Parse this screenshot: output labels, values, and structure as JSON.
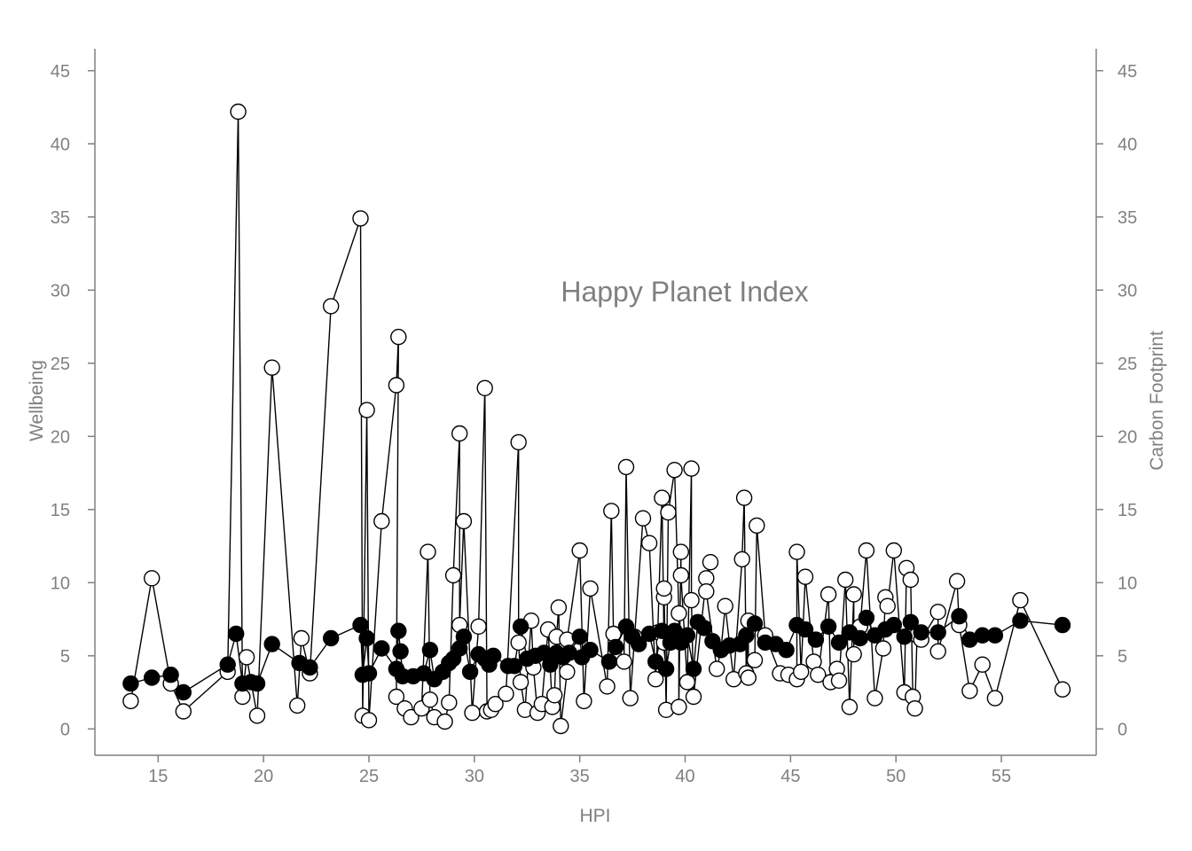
{
  "chart_data": {
    "type": "line",
    "title": "Happy Planet Index",
    "xlabel": "HPI",
    "ylabel": "Wellbeing",
    "y2label": "Carbon Footprint",
    "xlim": [
      12,
      59.5
    ],
    "ylim": [
      -1.8,
      46.5
    ],
    "xticks": [
      15,
      20,
      25,
      30,
      35,
      40,
      45,
      50,
      55
    ],
    "yticks": [
      0,
      5,
      10,
      15,
      20,
      25,
      30,
      35,
      40,
      45
    ],
    "y2ticks": [
      0,
      5,
      10,
      15,
      20,
      25,
      30,
      35,
      40,
      45
    ],
    "grid": false,
    "series": [
      {
        "name": "",
        "axis": "left",
        "marker": "filled",
        "color": "#000000",
        "points": [
          [
            13.7,
            3.1
          ],
          [
            14.7,
            3.5
          ],
          [
            15.6,
            3.7
          ],
          [
            16.2,
            2.5
          ],
          [
            18.3,
            4.4
          ],
          [
            18.7,
            6.5
          ],
          [
            19.0,
            3.1
          ],
          [
            19.4,
            3.2
          ],
          [
            19.7,
            3.1
          ],
          [
            20.4,
            5.8
          ],
          [
            21.7,
            4.5
          ],
          [
            22.2,
            4.2
          ],
          [
            23.2,
            6.2
          ],
          [
            24.6,
            7.1
          ],
          [
            24.7,
            3.7
          ],
          [
            24.9,
            6.2
          ],
          [
            25.0,
            3.8
          ],
          [
            25.6,
            5.5
          ],
          [
            26.3,
            4.1
          ],
          [
            26.4,
            6.7
          ],
          [
            26.5,
            5.3
          ],
          [
            26.6,
            3.6
          ],
          [
            27.1,
            3.6
          ],
          [
            27.6,
            3.8
          ],
          [
            27.9,
            5.4
          ],
          [
            28.1,
            3.4
          ],
          [
            28.5,
            3.9
          ],
          [
            28.8,
            4.5
          ],
          [
            29.0,
            4.8
          ],
          [
            29.3,
            5.5
          ],
          [
            29.5,
            6.3
          ],
          [
            29.8,
            3.9
          ],
          [
            30.2,
            5.1
          ],
          [
            30.5,
            4.8
          ],
          [
            30.7,
            4.4
          ],
          [
            30.9,
            5.0
          ],
          [
            31.6,
            4.3
          ],
          [
            31.9,
            4.3
          ],
          [
            32.2,
            7.0
          ],
          [
            32.5,
            4.8
          ],
          [
            32.9,
            5.0
          ],
          [
            33.3,
            5.2
          ],
          [
            33.6,
            4.4
          ],
          [
            33.9,
            5.2
          ],
          [
            34.2,
            4.9
          ],
          [
            34.5,
            5.2
          ],
          [
            35.0,
            6.3
          ],
          [
            35.1,
            4.9
          ],
          [
            35.5,
            5.4
          ],
          [
            36.4,
            4.6
          ],
          [
            36.7,
            5.6
          ],
          [
            37.2,
            7.0
          ],
          [
            37.5,
            6.3
          ],
          [
            37.8,
            5.8
          ],
          [
            38.3,
            6.5
          ],
          [
            38.6,
            4.6
          ],
          [
            38.9,
            6.7
          ],
          [
            39.1,
            4.1
          ],
          [
            39.3,
            5.9
          ],
          [
            39.5,
            6.7
          ],
          [
            39.8,
            5.9
          ],
          [
            40.1,
            6.4
          ],
          [
            40.4,
            4.1
          ],
          [
            40.6,
            7.3
          ],
          [
            40.9,
            6.9
          ],
          [
            41.3,
            6.0
          ],
          [
            41.7,
            5.4
          ],
          [
            42.1,
            5.7
          ],
          [
            42.6,
            5.8
          ],
          [
            42.9,
            6.4
          ],
          [
            43.3,
            7.2
          ],
          [
            43.8,
            5.9
          ],
          [
            44.3,
            5.8
          ],
          [
            44.8,
            5.4
          ],
          [
            45.3,
            7.1
          ],
          [
            45.7,
            6.8
          ],
          [
            46.2,
            6.1
          ],
          [
            46.8,
            7.0
          ],
          [
            47.3,
            5.9
          ],
          [
            47.8,
            6.6
          ],
          [
            48.3,
            6.2
          ],
          [
            48.6,
            7.6
          ],
          [
            49.0,
            6.4
          ],
          [
            49.5,
            6.8
          ],
          [
            49.9,
            7.1
          ],
          [
            50.4,
            6.3
          ],
          [
            50.7,
            7.3
          ],
          [
            51.2,
            6.6
          ],
          [
            52.0,
            6.6
          ],
          [
            53.0,
            7.7
          ],
          [
            53.5,
            6.1
          ],
          [
            54.1,
            6.4
          ],
          [
            54.7,
            6.4
          ],
          [
            55.9,
            7.4
          ],
          [
            57.9,
            7.1
          ]
        ]
      },
      {
        "name": "",
        "axis": "right",
        "marker": "open",
        "color": "#000000",
        "points": [
          [
            13.7,
            1.9
          ],
          [
            14.7,
            10.3
          ],
          [
            15.6,
            3.1
          ],
          [
            16.2,
            1.2
          ],
          [
            18.3,
            3.9
          ],
          [
            18.8,
            42.2
          ],
          [
            19.0,
            2.2
          ],
          [
            19.2,
            4.9
          ],
          [
            19.7,
            0.9
          ],
          [
            20.4,
            24.7
          ],
          [
            21.6,
            1.6
          ],
          [
            21.8,
            6.2
          ],
          [
            22.2,
            3.8
          ],
          [
            23.2,
            28.9
          ],
          [
            24.6,
            34.9
          ],
          [
            24.7,
            0.9
          ],
          [
            24.9,
            21.8
          ],
          [
            25.0,
            0.6
          ],
          [
            25.6,
            14.2
          ],
          [
            26.3,
            23.5
          ],
          [
            26.4,
            26.8
          ],
          [
            26.3,
            2.2
          ],
          [
            26.7,
            1.4
          ],
          [
            27.0,
            0.8
          ],
          [
            27.5,
            1.4
          ],
          [
            27.8,
            12.1
          ],
          [
            27.9,
            2.0
          ],
          [
            28.1,
            0.8
          ],
          [
            28.6,
            0.5
          ],
          [
            28.8,
            1.8
          ],
          [
            29.0,
            10.5
          ],
          [
            29.3,
            20.2
          ],
          [
            29.3,
            7.1
          ],
          [
            29.5,
            14.2
          ],
          [
            29.9,
            1.1
          ],
          [
            30.2,
            7.0
          ],
          [
            30.5,
            23.3
          ],
          [
            30.6,
            1.2
          ],
          [
            30.8,
            1.3
          ],
          [
            31.0,
            1.7
          ],
          [
            31.5,
            2.4
          ],
          [
            32.1,
            19.6
          ],
          [
            32.1,
            5.9
          ],
          [
            32.2,
            3.2
          ],
          [
            32.4,
            1.3
          ],
          [
            32.7,
            7.4
          ],
          [
            32.8,
            4.2
          ],
          [
            33.0,
            1.1
          ],
          [
            33.2,
            1.7
          ],
          [
            33.5,
            6.8
          ],
          [
            33.7,
            1.5
          ],
          [
            33.8,
            2.3
          ],
          [
            33.9,
            6.3
          ],
          [
            34.0,
            8.3
          ],
          [
            34.1,
            0.2
          ],
          [
            34.4,
            3.9
          ],
          [
            34.4,
            6.1
          ],
          [
            35.0,
            12.2
          ],
          [
            35.2,
            1.9
          ],
          [
            35.5,
            9.6
          ],
          [
            36.3,
            2.9
          ],
          [
            36.5,
            14.9
          ],
          [
            36.6,
            6.5
          ],
          [
            37.1,
            4.6
          ],
          [
            37.2,
            17.9
          ],
          [
            37.4,
            2.1
          ],
          [
            37.6,
            6.3
          ],
          [
            38.0,
            14.4
          ],
          [
            38.3,
            12.7
          ],
          [
            38.6,
            3.4
          ],
          [
            38.7,
            6.6
          ],
          [
            38.9,
            15.8
          ],
          [
            39.0,
            5.9
          ],
          [
            39.0,
            9.0
          ],
          [
            39.0,
            9.6
          ],
          [
            39.1,
            1.3
          ],
          [
            39.2,
            14.8
          ],
          [
            39.5,
            17.7
          ],
          [
            39.7,
            7.9
          ],
          [
            39.7,
            1.5
          ],
          [
            39.8,
            12.1
          ],
          [
            39.8,
            10.5
          ],
          [
            40.1,
            3.2
          ],
          [
            40.3,
            17.8
          ],
          [
            40.3,
            8.8
          ],
          [
            40.4,
            2.2
          ],
          [
            41.0,
            10.3
          ],
          [
            41.2,
            11.4
          ],
          [
            41.0,
            9.4
          ],
          [
            41.5,
            4.1
          ],
          [
            41.7,
            5.4
          ],
          [
            41.9,
            8.4
          ],
          [
            42.3,
            3.4
          ],
          [
            42.7,
            11.6
          ],
          [
            42.8,
            15.8
          ],
          [
            42.9,
            3.8
          ],
          [
            43.0,
            7.4
          ],
          [
            43.0,
            3.5
          ],
          [
            43.3,
            4.7
          ],
          [
            43.4,
            13.9
          ],
          [
            43.8,
            6.4
          ],
          [
            44.5,
            3.8
          ],
          [
            44.9,
            3.7
          ],
          [
            45.3,
            3.4
          ],
          [
            45.3,
            12.1
          ],
          [
            45.5,
            3.9
          ],
          [
            45.7,
            10.4
          ],
          [
            46.1,
            4.6
          ],
          [
            46.3,
            3.7
          ],
          [
            46.8,
            9.2
          ],
          [
            46.9,
            3.2
          ],
          [
            47.2,
            4.1
          ],
          [
            47.3,
            3.3
          ],
          [
            47.6,
            10.2
          ],
          [
            47.8,
            1.5
          ],
          [
            48.0,
            9.2
          ],
          [
            48.0,
            5.1
          ],
          [
            48.0,
            6.6
          ],
          [
            48.3,
            7.0
          ],
          [
            48.6,
            12.2
          ],
          [
            49.0,
            2.1
          ],
          [
            49.4,
            5.5
          ],
          [
            49.5,
            9.0
          ],
          [
            49.6,
            8.4
          ],
          [
            49.9,
            12.2
          ],
          [
            50.4,
            2.5
          ],
          [
            50.5,
            11.0
          ],
          [
            50.7,
            10.2
          ],
          [
            50.8,
            2.2
          ],
          [
            50.9,
            1.4
          ],
          [
            51.0,
            6.4
          ],
          [
            51.2,
            6.1
          ],
          [
            52.0,
            8.0
          ],
          [
            52.0,
            5.3
          ],
          [
            52.9,
            10.1
          ],
          [
            53.0,
            7.1
          ],
          [
            53.5,
            2.6
          ],
          [
            54.1,
            4.4
          ],
          [
            54.7,
            2.1
          ],
          [
            55.9,
            8.8
          ],
          [
            57.9,
            2.7
          ]
        ]
      }
    ]
  }
}
